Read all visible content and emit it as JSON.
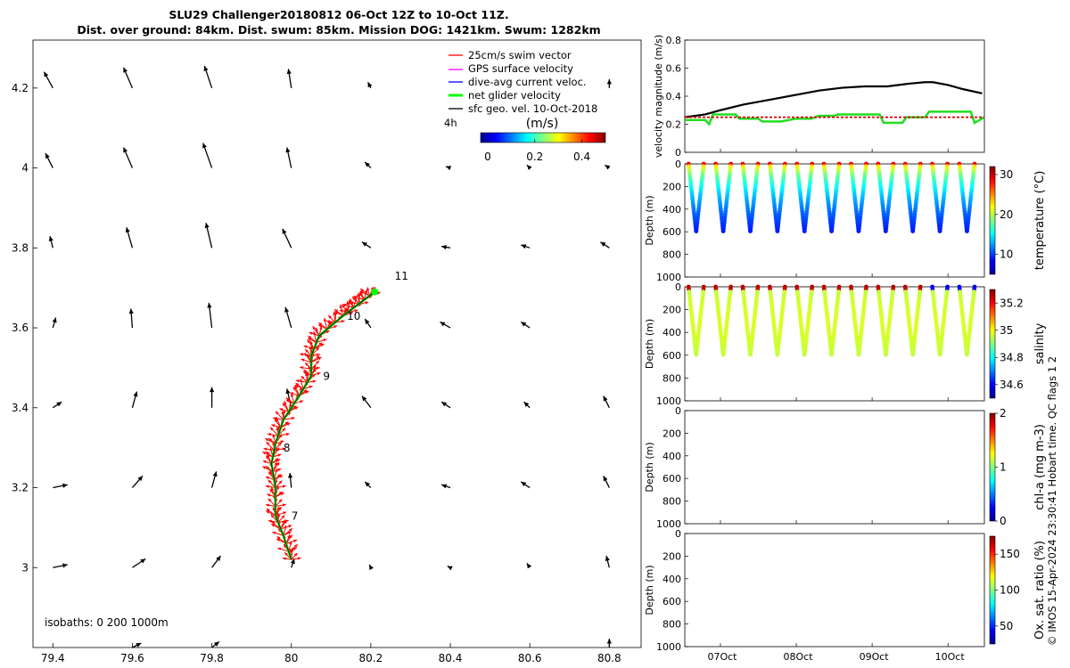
{
  "title": {
    "line1": "SLU29 Challenger20180812 06-Oct 12Z to 10-Oct 11Z.",
    "line2": "Dist. over ground: 84km. Dist. swum: 85km. Mission DOG: 1421km. Swum: 1282km"
  },
  "colors": {
    "swim": "#ff0000",
    "gps": "#ff00ff",
    "dive": "#0000ff",
    "net": "#00ff00",
    "sfc": "#000000",
    "vel_black": "#000000",
    "vel_green": "#22dd22",
    "vel_red": "#dd0000"
  },
  "chart_data": [
    {
      "type": "map",
      "xlim": [
        79.35,
        80.88
      ],
      "ylim": [
        2.8,
        4.32
      ],
      "x_ticks": [
        "79.4",
        "79.6",
        "79.8",
        "80",
        "80.2",
        "80.4",
        "80.6",
        "80.8"
      ],
      "y_ticks": [
        "3",
        "3.2",
        "3.4",
        "3.6",
        "3.8",
        "4",
        "4.2"
      ],
      "legend": [
        {
          "label": "25cm/s swim vector",
          "color": "#ff0000"
        },
        {
          "label": "GPS surface velocity",
          "color": "#ff00ff"
        },
        {
          "label": "dive-avg current veloc.",
          "color": "#0000ff"
        },
        {
          "label": "net glider velocity",
          "color": "#00ff00"
        },
        {
          "label": "sfc geo. vel. 10-Oct-2018",
          "color": "#000000"
        }
      ],
      "legend_placement": "top-right",
      "colorbar": {
        "label": "(m/s)",
        "ticks": [
          "0",
          "0.2",
          "0.4"
        ],
        "range": [
          -0.03,
          0.5
        ],
        "side_label": "4h"
      },
      "isobaths_label": "isobaths: 0   200  1000m",
      "day_labels": [
        {
          "text": "7",
          "lon": 80.0,
          "lat": 3.12
        },
        {
          "text": "8",
          "lon": 79.98,
          "lat": 3.29
        },
        {
          "text": "9",
          "lon": 80.08,
          "lat": 3.47
        },
        {
          "text": "10",
          "lon": 80.14,
          "lat": 3.62
        },
        {
          "text": "11",
          "lon": 80.26,
          "lat": 3.72
        }
      ],
      "track": [
        [
          80.0,
          3.02
        ],
        [
          79.98,
          3.08
        ],
        [
          79.96,
          3.13
        ],
        [
          79.96,
          3.2
        ],
        [
          79.95,
          3.26
        ],
        [
          79.96,
          3.31
        ],
        [
          79.98,
          3.37
        ],
        [
          80.02,
          3.43
        ],
        [
          80.05,
          3.48
        ],
        [
          80.05,
          3.53
        ],
        [
          80.07,
          3.58
        ],
        [
          80.13,
          3.63
        ],
        [
          80.17,
          3.66
        ],
        [
          80.21,
          3.69
        ]
      ],
      "sfc_vectors": [
        [
          79.4,
          4.2,
          -0.03,
          0.055
        ],
        [
          79.6,
          4.2,
          -0.03,
          0.07
        ],
        [
          79.8,
          4.2,
          -0.025,
          0.075
        ],
        [
          80.0,
          4.2,
          -0.01,
          0.065
        ],
        [
          80.2,
          4.2,
          -0.01,
          0.02
        ],
        [
          80.8,
          4.2,
          0.0,
          0.03
        ],
        [
          79.4,
          4.0,
          -0.025,
          0.05
        ],
        [
          79.6,
          4.0,
          -0.03,
          0.07
        ],
        [
          79.8,
          4.0,
          -0.03,
          0.085
        ],
        [
          80.0,
          4.0,
          -0.015,
          0.07
        ],
        [
          80.2,
          4.0,
          -0.02,
          0.02
        ],
        [
          80.4,
          4.0,
          -0.015,
          0.005
        ],
        [
          80.6,
          4.0,
          -0.01,
          0.01
        ],
        [
          80.8,
          4.0,
          -0.015,
          0.01
        ],
        [
          79.4,
          3.8,
          -0.01,
          0.04
        ],
        [
          79.6,
          3.8,
          -0.02,
          0.07
        ],
        [
          79.8,
          3.8,
          -0.02,
          0.085
        ],
        [
          80.0,
          3.8,
          -0.03,
          0.065
        ],
        [
          80.2,
          3.8,
          -0.03,
          0.02
        ],
        [
          80.4,
          3.8,
          -0.03,
          0.005
        ],
        [
          80.6,
          3.8,
          -0.03,
          0.01
        ],
        [
          80.8,
          3.8,
          -0.03,
          0.02
        ],
        [
          79.4,
          3.6,
          0.01,
          0.035
        ],
        [
          79.6,
          3.6,
          -0.005,
          0.065
        ],
        [
          79.8,
          3.6,
          -0.01,
          0.085
        ],
        [
          80.0,
          3.6,
          -0.02,
          0.07
        ],
        [
          80.2,
          3.6,
          -0.02,
          0.03
        ],
        [
          80.4,
          3.6,
          -0.035,
          0.02
        ],
        [
          80.6,
          3.6,
          -0.03,
          0.02
        ],
        [
          79.4,
          3.4,
          0.03,
          0.02
        ],
        [
          79.6,
          3.4,
          0.015,
          0.055
        ],
        [
          79.8,
          3.4,
          0.0,
          0.07
        ],
        [
          80.0,
          3.4,
          -0.015,
          0.065
        ],
        [
          80.2,
          3.4,
          -0.03,
          0.04
        ],
        [
          80.4,
          3.4,
          -0.03,
          0.02
        ],
        [
          80.6,
          3.4,
          -0.02,
          0.02
        ],
        [
          80.8,
          3.4,
          -0.02,
          0.04
        ],
        [
          79.4,
          3.2,
          0.05,
          0.01
        ],
        [
          79.6,
          3.2,
          0.035,
          0.04
        ],
        [
          79.8,
          3.2,
          0.015,
          0.055
        ],
        [
          80.0,
          3.2,
          -0.005,
          0.05
        ],
        [
          80.2,
          3.2,
          -0.02,
          0.02
        ],
        [
          80.4,
          3.2,
          -0.03,
          0.01
        ],
        [
          80.6,
          3.2,
          -0.03,
          0.02
        ],
        [
          80.8,
          3.2,
          -0.02,
          0.04
        ],
        [
          79.4,
          3.0,
          0.05,
          0.01
        ],
        [
          79.6,
          3.0,
          0.045,
          0.03
        ],
        [
          79.8,
          3.0,
          0.03,
          0.04
        ],
        [
          80.0,
          3.0,
          0.01,
          0.03
        ],
        [
          80.2,
          3.0,
          -0.005,
          0.01
        ],
        [
          80.4,
          3.0,
          -0.01,
          0.005
        ],
        [
          80.6,
          3.0,
          -0.01,
          0.015
        ],
        [
          80.8,
          3.0,
          -0.01,
          0.04
        ],
        [
          79.6,
          2.8,
          0.03,
          0.015
        ],
        [
          79.8,
          2.8,
          0.025,
          0.02
        ],
        [
          80.8,
          2.8,
          0.0,
          0.03
        ]
      ]
    },
    {
      "type": "line",
      "ylabel": "velocity magnitude (m/s)",
      "ylim": [
        0,
        0.8
      ],
      "y_ticks": [
        "0",
        "0.2",
        "0.4",
        "0.6",
        "0.8"
      ],
      "xlim": [
        6.53,
        10.48
      ],
      "x_ticks": [
        "07Oct",
        "08Oct",
        "09Oct",
        "10Oct"
      ],
      "series": [
        {
          "color": "#000000",
          "x": [
            6.53,
            6.8,
            7.0,
            7.3,
            7.7,
            8.0,
            8.3,
            8.6,
            8.9,
            9.2,
            9.5,
            9.7,
            9.8,
            10.0,
            10.2,
            10.45
          ],
          "y": [
            0.25,
            0.27,
            0.3,
            0.34,
            0.38,
            0.41,
            0.44,
            0.46,
            0.47,
            0.47,
            0.49,
            0.5,
            0.5,
            0.48,
            0.45,
            0.42
          ]
        },
        {
          "color": "#22dd22",
          "x": [
            6.53,
            6.8,
            6.85,
            6.9,
            7.2,
            7.25,
            7.5,
            7.55,
            7.8,
            8.0,
            8.2,
            8.3,
            8.5,
            8.55,
            8.8,
            9.1,
            9.15,
            9.4,
            9.45,
            9.7,
            9.75,
            9.95,
            10.0,
            10.3,
            10.35,
            10.48
          ],
          "y": [
            0.23,
            0.23,
            0.2,
            0.27,
            0.27,
            0.24,
            0.24,
            0.22,
            0.22,
            0.24,
            0.24,
            0.26,
            0.26,
            0.27,
            0.27,
            0.27,
            0.21,
            0.21,
            0.25,
            0.25,
            0.29,
            0.29,
            0.29,
            0.29,
            0.21,
            0.25
          ]
        },
        {
          "color": "#dd0000",
          "x": [
            6.53,
            10.48
          ],
          "y": [
            0.25,
            0.25
          ]
        }
      ]
    },
    {
      "type": "scatter",
      "ylabel": "Depth (m)",
      "ylim": [
        1000,
        0
      ],
      "y_ticks": [
        "0",
        "200",
        "400",
        "600",
        "800",
        "1000"
      ],
      "colorbar_label": "temperature (°C)",
      "colorbar_ticks": [
        "30",
        "20",
        "10"
      ],
      "colorbar_range": [
        5,
        32
      ],
      "profiles": 11,
      "max_depth": 600
    },
    {
      "type": "scatter",
      "ylabel": "Depth (m)",
      "ylim": [
        1000,
        0
      ],
      "y_ticks": [
        "0",
        "200",
        "400",
        "600",
        "800",
        "1000"
      ],
      "colorbar_label": "salinity",
      "colorbar_ticks": [
        "35.2",
        "35",
        "34.8",
        "34.6"
      ],
      "colorbar_range": [
        34.5,
        35.3
      ],
      "profiles": 11,
      "max_depth": 600
    },
    {
      "type": "scatter",
      "ylabel": "Depth (m)",
      "ylim": [
        1000,
        0
      ],
      "y_ticks": [
        "0",
        "200",
        "400",
        "600",
        "800",
        "1000"
      ],
      "colorbar_label": "chl-a (mg m-3)",
      "colorbar_ticks": [
        "2",
        "1",
        "0"
      ],
      "colorbar_range": [
        0,
        2
      ]
    },
    {
      "type": "scatter",
      "ylabel": "Depth (m)",
      "ylim": [
        1000,
        0
      ],
      "y_ticks": [
        "0",
        "200",
        "400",
        "600",
        "800",
        "1000"
      ],
      "colorbar_label": "Ox. sat. ratio (%)",
      "colorbar_ticks": [
        "150",
        "100",
        "50"
      ],
      "colorbar_range": [
        25,
        175
      ],
      "x_ticks": [
        "07Oct",
        "08Oct",
        "09Oct",
        "10Oct"
      ]
    }
  ],
  "footer_vertical": "© IMOS 15-Apr-2024 23:30:41 Hobart time. QC flags 1  2"
}
